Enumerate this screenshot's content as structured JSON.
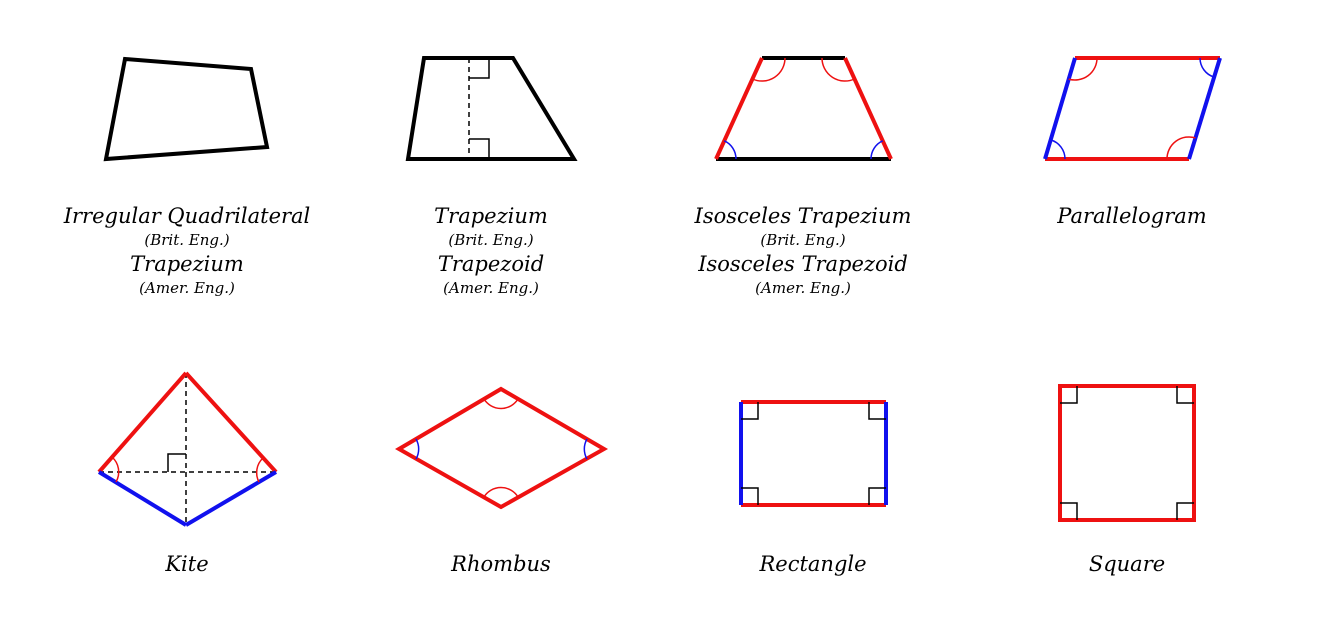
{
  "colors": {
    "black": "#000000",
    "red": "#ee1111",
    "blue": "#1111ee"
  },
  "shapes": {
    "irregular": {
      "name": "Irregular Quadrilateral",
      "note1": "(Brit. Eng.)",
      "alt": "Trapezium",
      "note2": "(Amer. Eng.)"
    },
    "trapezium": {
      "name": "Trapezium",
      "note1": "(Brit. Eng.)",
      "alt": "Trapezoid",
      "note2": "(Amer. Eng.)"
    },
    "isosceles": {
      "name": "Isosceles Trapezium",
      "note1": "(Brit. Eng.)",
      "alt": "Isosceles Trapezoid",
      "note2": "(Amer. Eng.)"
    },
    "parallelogram": {
      "name": "Parallelogram"
    },
    "kite": {
      "name": "Kite"
    },
    "rhombus": {
      "name": "Rhombus"
    },
    "rectangle": {
      "name": "Rectangle"
    },
    "square": {
      "name": "Square"
    }
  }
}
